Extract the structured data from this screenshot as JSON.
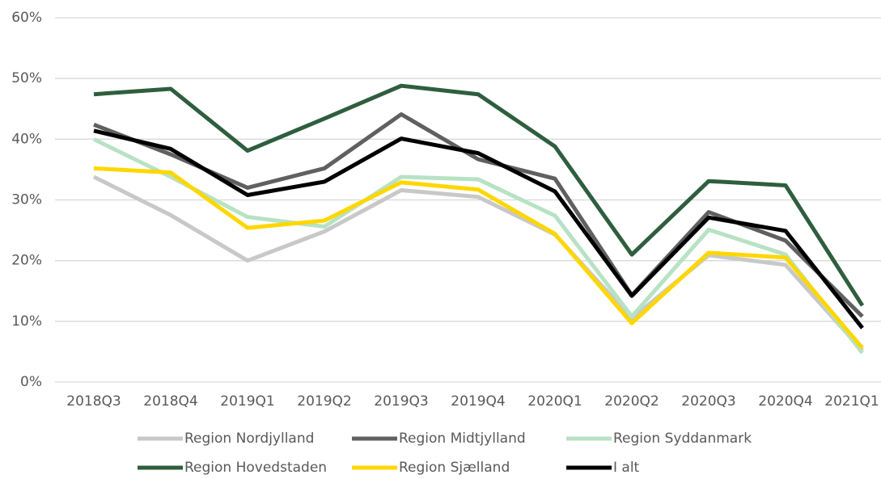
{
  "chart_data": {
    "type": "line",
    "categories": [
      "2018Q3",
      "2018Q4",
      "2019Q1",
      "2019Q2",
      "2019Q3",
      "2019Q4",
      "2020Q1",
      "2020Q2",
      "2020Q3",
      "2020Q4",
      "2021Q1"
    ],
    "series": [
      {
        "name": "Region Nordjylland",
        "color": "#c8c8c8",
        "values": [
          33.8,
          27.5,
          20.0,
          24.8,
          31.6,
          30.5,
          24.3,
          10.5,
          20.9,
          19.3,
          5.2
        ]
      },
      {
        "name": "Region Midtjylland",
        "color": "#606060",
        "values": [
          42.4,
          37.5,
          32.0,
          35.2,
          44.1,
          36.7,
          33.5,
          14.3,
          28.0,
          23.3,
          10.8
        ]
      },
      {
        "name": "Region Syddanmark",
        "color": "#b7e2c4",
        "values": [
          40.0,
          33.8,
          27.2,
          25.6,
          33.8,
          33.4,
          27.4,
          10.8,
          25.1,
          21.0,
          4.8
        ]
      },
      {
        "name": "Region Hovedstaden",
        "color": "#2e5e3e",
        "values": [
          47.4,
          48.3,
          38.1,
          43.4,
          48.8,
          47.4,
          38.8,
          21.0,
          33.1,
          32.4,
          12.6
        ]
      },
      {
        "name": "Region Sjælland",
        "color": "#ffd700",
        "values": [
          35.2,
          34.5,
          25.4,
          26.6,
          32.9,
          31.7,
          24.4,
          9.7,
          21.3,
          20.5,
          5.6
        ]
      },
      {
        "name": "I alt",
        "color": "#000000",
        "values": [
          41.4,
          38.4,
          30.8,
          33.0,
          40.1,
          37.7,
          31.4,
          14.2,
          27.1,
          24.9,
          8.9
        ]
      }
    ],
    "ylim": [
      0,
      60
    ],
    "yticks": [
      {
        "value": 0,
        "label": "0%"
      },
      {
        "value": 10,
        "label": "10%"
      },
      {
        "value": 20,
        "label": "20%"
      },
      {
        "value": 30,
        "label": "30%"
      },
      {
        "value": 40,
        "label": "40%"
      },
      {
        "value": 50,
        "label": "50%"
      },
      {
        "value": 60,
        "label": "60%"
      }
    ],
    "grid": true
  }
}
